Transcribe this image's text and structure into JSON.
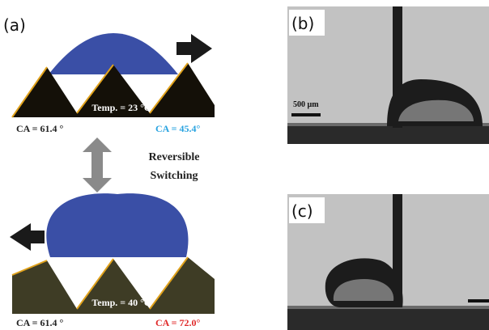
{
  "panel_a": {
    "label": "(a)",
    "top": {
      "temperature": "Temp. = 23 °C",
      "ca_left": "CA = 61.4 °",
      "ca_right": "CA = 45.4°"
    },
    "switch": {
      "line1": "Reversible",
      "line2": "Switching"
    },
    "bottom": {
      "temperature": "Temp. = 40 °C",
      "ca_left": "CA = 61.4 °",
      "ca_right": "CA = 72.0°"
    }
  },
  "panel_b": {
    "label": "(b)",
    "scale_bar": "500 µm"
  },
  "panel_c": {
    "label": "(c)"
  }
}
